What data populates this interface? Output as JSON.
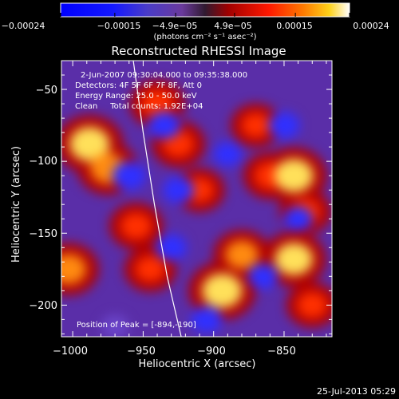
{
  "chart_data": {
    "type": "heatmap",
    "title": "Reconstructed RHESSI Image",
    "xlabel": "Heliocentric X (arcsec)",
    "ylabel": "Heliocentric Y (arcsec)",
    "xlim": [
      -1008,
      -816
    ],
    "ylim": [
      -222,
      -30
    ],
    "x_ticks": [
      -1000,
      -950,
      -900,
      -850
    ],
    "x_tick_labels": [
      "−1000",
      "−950",
      "−900",
      "−850"
    ],
    "y_ticks": [
      -50,
      -100,
      -150,
      -200
    ],
    "y_tick_labels": [
      "−50",
      "−100",
      "−150",
      "−200"
    ],
    "colorbar": {
      "range": [
        -0.00024,
        0.00024
      ],
      "ticks": [
        -0.00024,
        -0.00015,
        -4.9e-05,
        4.9e-05,
        0.00015,
        0.00024
      ],
      "tick_labels": [
        "−0.00024",
        "−0.00015",
        "−4.9e−05",
        "4.9e−05",
        "0.00015",
        "0.00024"
      ],
      "unit_label": "(photons cm⁻² s⁻¹ asec⁻²)"
    },
    "annotations": [
      "2-Jun-2007 09:30:04.000 to 09:35:38.000",
      "Detectors: 4F 5F 6F 7F 8F, Att 0",
      "Energy Range: 25.0 - 50.0 keV",
      "Clean     Total counts: 1.92E+04"
    ],
    "peak_label": "Position of Peak = [-894,-190]",
    "timestamp": "25-Jul-2013 05:29",
    "hot_spots": [
      {
        "x": -988,
        "y": -88,
        "v": 1.0
      },
      {
        "x": -975,
        "y": -105,
        "v": 0.8
      },
      {
        "x": -1003,
        "y": -175,
        "v": 0.8
      },
      {
        "x": -940,
        "y": -60,
        "v": 0.65
      },
      {
        "x": -925,
        "y": -88,
        "v": 0.6
      },
      {
        "x": -955,
        "y": -145,
        "v": 0.6
      },
      {
        "x": -945,
        "y": -175,
        "v": 0.55
      },
      {
        "x": -910,
        "y": -120,
        "v": 0.5
      },
      {
        "x": -894,
        "y": -190,
        "v": 1.0
      },
      {
        "x": -880,
        "y": -165,
        "v": 0.7
      },
      {
        "x": -860,
        "y": -110,
        "v": 0.6
      },
      {
        "x": -843,
        "y": -110,
        "v": 0.95
      },
      {
        "x": -843,
        "y": -168,
        "v": 0.9
      },
      {
        "x": -835,
        "y": -135,
        "v": 0.55
      },
      {
        "x": -830,
        "y": -200,
        "v": 0.55
      },
      {
        "x": -870,
        "y": -75,
        "v": 0.5
      }
    ],
    "cold_spots": [
      {
        "x": -960,
        "y": -110,
        "v": -0.7
      },
      {
        "x": -935,
        "y": -75,
        "v": -0.65
      },
      {
        "x": -925,
        "y": -120,
        "v": -0.6
      },
      {
        "x": -890,
        "y": -95,
        "v": -0.5
      },
      {
        "x": -850,
        "y": -75,
        "v": -0.6
      },
      {
        "x": -865,
        "y": -180,
        "v": -0.55
      },
      {
        "x": -930,
        "y": -160,
        "v": -0.6
      },
      {
        "x": -905,
        "y": -210,
        "v": -0.6
      },
      {
        "x": -970,
        "y": -215,
        "v": -0.45
      },
      {
        "x": -840,
        "y": -140,
        "v": -0.5
      }
    ],
    "limb_curve": [
      {
        "x": -957,
        "y": -30
      },
      {
        "x": -950,
        "y": -80
      },
      {
        "x": -942,
        "y": -130
      },
      {
        "x": -933,
        "y": -180
      },
      {
        "x": -923,
        "y": -222
      }
    ]
  }
}
